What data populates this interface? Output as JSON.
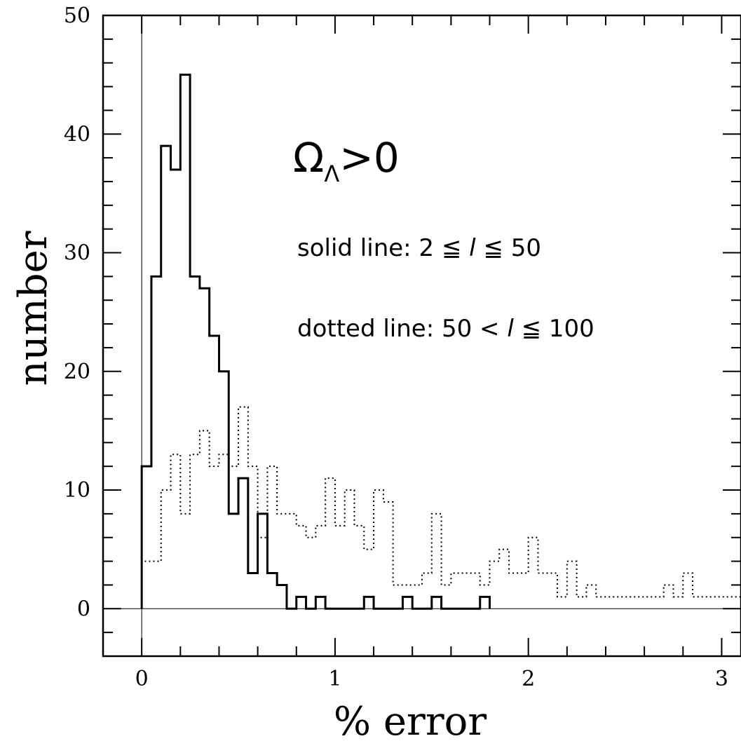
{
  "chart_data": {
    "type": "histogram",
    "xlabel": "% error",
    "ylabel": "number",
    "xlim": [
      -0.2,
      3.1
    ],
    "ylim": [
      -4,
      50
    ],
    "xticks": [
      0,
      1,
      2,
      3
    ],
    "yticks": [
      0,
      10,
      20,
      30,
      40,
      50
    ],
    "bin_width": 0.05,
    "bin_start": 0,
    "grid": false,
    "reference_lines": {
      "x": 0,
      "y": 0
    },
    "annotations": {
      "main": {
        "base": "Ω",
        "sub": "Λ",
        "rest": ">0"
      },
      "solid": {
        "pre": "solid line: 2 ≦ ",
        "var": "l",
        "post": " ≦ 50"
      },
      "dotted": {
        "pre": "dotted line: 50 < ",
        "var": "l",
        "post": " ≦ 100"
      }
    },
    "series": [
      {
        "style": "solid",
        "values": [
          12,
          28,
          39,
          37,
          45,
          28,
          27,
          23,
          20,
          8,
          11,
          3,
          8,
          3,
          2,
          0,
          1,
          0,
          1,
          0,
          0,
          0,
          0,
          1,
          0,
          0,
          0,
          1,
          0,
          0,
          1,
          0,
          0,
          0,
          0,
          1
        ]
      },
      {
        "style": "dotted",
        "values": [
          4,
          4,
          10,
          13,
          8,
          13,
          15,
          12,
          13,
          12,
          17,
          12,
          6,
          12,
          8,
          8,
          7,
          6,
          7,
          11,
          7,
          10,
          7,
          5,
          10,
          9,
          2,
          2,
          2,
          3,
          8,
          2,
          3,
          3,
          3,
          2,
          4,
          5,
          3,
          3,
          6,
          3,
          3,
          1,
          4,
          1,
          2,
          1,
          1,
          1,
          1,
          1,
          1,
          1,
          2,
          1,
          3,
          1,
          1,
          1,
          1,
          1,
          0,
          1,
          0,
          1,
          0,
          0,
          0,
          0
        ]
      }
    ]
  }
}
